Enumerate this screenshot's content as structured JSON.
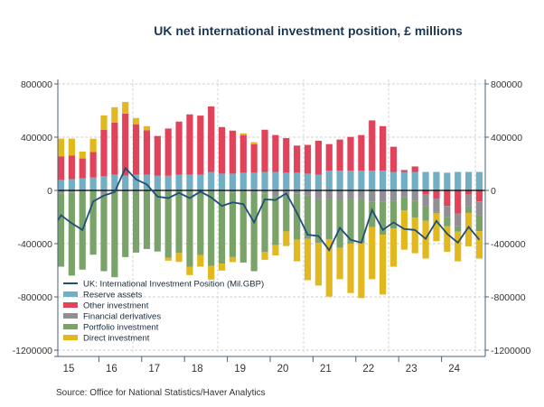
{
  "chart_data": {
    "type": "bar",
    "subtype": "stacked bar with line",
    "title": "UK net international investment position, £ millions",
    "source": "Source:  Office for National Statistics/Haver Analytics",
    "ylim": [
      -1200000,
      800000
    ],
    "yticks": [
      800000,
      400000,
      0,
      -400000,
      -800000,
      -1200000
    ],
    "ytick_labels": [
      "800000",
      "400000",
      "0",
      "-400000",
      "-800000",
      "-1200000"
    ],
    "year_labels": [
      "15",
      "16",
      "17",
      "18",
      "19",
      "20",
      "21",
      "22",
      "23",
      "24"
    ],
    "categories": [
      "2015Q1",
      "2015Q2",
      "2015Q3",
      "2015Q4",
      "2016Q1",
      "2016Q2",
      "2016Q3",
      "2016Q4",
      "2017Q1",
      "2017Q2",
      "2017Q3",
      "2017Q4",
      "2018Q1",
      "2018Q2",
      "2018Q3",
      "2018Q4",
      "2019Q1",
      "2019Q2",
      "2019Q3",
      "2019Q4",
      "2020Q1",
      "2020Q2",
      "2020Q3",
      "2020Q4",
      "2021Q1",
      "2021Q2",
      "2021Q3",
      "2021Q4",
      "2022Q1",
      "2022Q2",
      "2022Q3",
      "2022Q4",
      "2023Q1",
      "2023Q2",
      "2023Q3",
      "2023Q4",
      "2024Q1",
      "2024Q2",
      "2024Q3",
      "2024Q4"
    ],
    "legend_position": "bottom-left",
    "colors": {
      "line": "#1f4e7a",
      "reserve": "#72afc4",
      "other": "#e0435a",
      "derivatives": "#918f95",
      "portfolio": "#7aa36a",
      "direct": "#e1b81e"
    },
    "legend": [
      "UK: International Investment Position (Mil.GBP)",
      "Reserve assets",
      "Other investment",
      "Financial derivatives",
      "Portfolio investment",
      "Direct investment"
    ],
    "series": [
      {
        "name": "Reserve assets",
        "key": "reserve",
        "values": [
          79000,
          85000,
          92000,
          97000,
          106000,
          119000,
          112000,
          119000,
          119000,
          112000,
          110000,
          117000,
          119000,
          119000,
          139000,
          126000,
          126000,
          133000,
          133000,
          139000,
          139000,
          133000,
          133000,
          126000,
          119000,
          148000,
          148000,
          148000,
          148000,
          148000,
          148000,
          139000,
          139000,
          139000,
          139000,
          139000,
          133000,
          139000,
          139000,
          139000
        ]
      },
      {
        "name": "Other investment",
        "key": "other",
        "values": [
          177000,
          176000,
          148000,
          191000,
          350000,
          391000,
          465000,
          378000,
          333000,
          297000,
          355000,
          400000,
          452000,
          443000,
          492000,
          350000,
          323000,
          283000,
          215000,
          317000,
          277000,
          260000,
          204000,
          216000,
          254000,
          200000,
          234000,
          254000,
          268000,
          378000,
          335000,
          189000,
          14000,
          41000,
          -27000,
          -63000,
          -117000,
          -175000,
          -27000,
          -83000
        ]
      },
      {
        "name": "Financial derivatives",
        "key": "derivatives",
        "values": [
          -22000,
          -15000,
          -10000,
          -5000,
          -29000,
          -10000,
          -10000,
          -10000,
          -3000,
          -8000,
          -10000,
          -1000,
          -10000,
          -10000,
          -10000,
          -10000,
          -15000,
          -10000,
          -20000,
          -22000,
          -45000,
          -34000,
          -25000,
          -38000,
          -67000,
          -67000,
          -74000,
          -67000,
          -67000,
          -83000,
          -83000,
          -79000,
          -52000,
          -79000,
          -94000,
          -99000,
          -81000,
          -95000,
          -94000,
          -104000
        ]
      },
      {
        "name": "Portfolio investment",
        "key": "portfolio",
        "values": [
          -551000,
          -625000,
          -585000,
          -478000,
          -578000,
          -642000,
          -491000,
          -457000,
          -437000,
          -451000,
          -496000,
          -469000,
          -563000,
          -475000,
          -556000,
          -540000,
          -486000,
          -532000,
          -587000,
          -439000,
          -366000,
          -274000,
          -346000,
          -326000,
          -326000,
          -299000,
          -357000,
          -333000,
          -331000,
          -193000,
          -250000,
          -206000,
          -99000,
          -125000,
          -108000,
          -10000,
          -72000,
          -40000,
          -48000,
          -119000
        ]
      },
      {
        "name": "Direct investment",
        "key": "direct",
        "values": [
          133000,
          128000,
          52000,
          100000,
          108000,
          115000,
          88000,
          47000,
          31000,
          0,
          -22000,
          -67000,
          -63000,
          -88000,
          -104000,
          -52000,
          -38000,
          13000,
          14000,
          -60000,
          -77000,
          -110000,
          -162000,
          -310000,
          -322000,
          -432000,
          -236000,
          -371000,
          -411000,
          -391000,
          -449000,
          -288000,
          -294000,
          -268000,
          -283000,
          -209000,
          -191000,
          -223000,
          -251000,
          -206000
        ]
      },
      {
        "name": "UK: International Investment Position (Mil.GBP)",
        "key": "line",
        "values": [
          -186000,
          -247000,
          -297000,
          -83000,
          -38000,
          -13000,
          168000,
          83000,
          45000,
          -47000,
          -58000,
          -18000,
          -58000,
          -9000,
          -52000,
          -117000,
          -90000,
          -103000,
          -240000,
          -67000,
          -72000,
          -22000,
          -169000,
          -333000,
          -342000,
          -449000,
          -281000,
          -371000,
          -393000,
          -146000,
          -297000,
          -240000,
          -290000,
          -297000,
          -364000,
          -229000,
          -326000,
          -393000,
          -274000,
          -371000
        ]
      }
    ]
  }
}
